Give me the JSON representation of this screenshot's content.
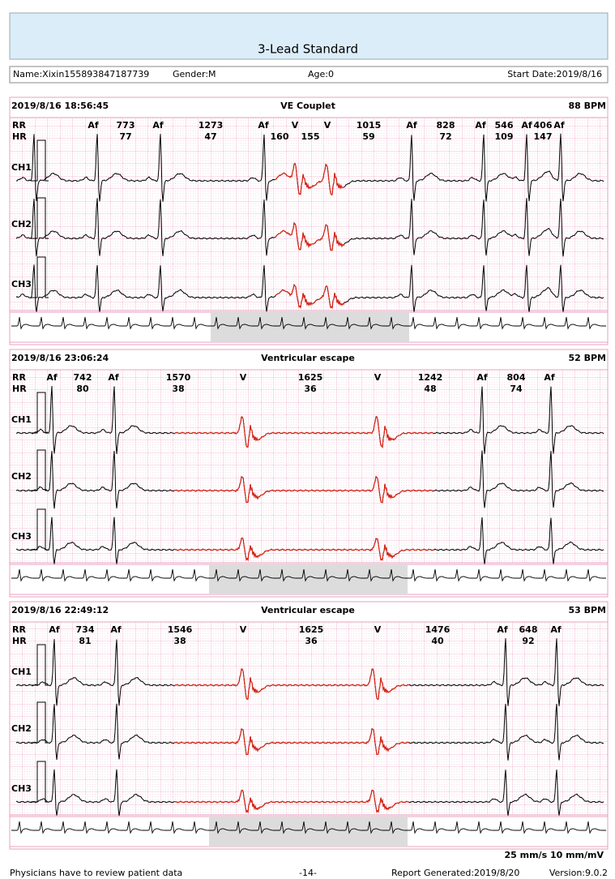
{
  "header": {
    "title": "3-Lead Standard"
  },
  "patient": {
    "name": "Name:Xixin155893847187739",
    "gender": "Gender:M",
    "age": "Age:0",
    "start_date": "Start Date:2019/8/16"
  },
  "strips": [
    {
      "time": "2019/8/16 18:56:45",
      "title": "VE Couplet",
      "bpm": "88 BPM",
      "rr_label": "RR",
      "hr_label": "HR",
      "channels": [
        "CH1",
        "CH2",
        "CH3"
      ],
      "rr": [
        "Af",
        "773",
        "Af",
        "1273",
        "Af",
        "V",
        "V",
        "1015",
        "Af",
        "828",
        "Af",
        "546",
        "Af",
        "406",
        "Af"
      ],
      "hr": [
        "77",
        "47",
        "160",
        "155",
        "59",
        "72",
        "109",
        "147"
      ]
    },
    {
      "time": "2019/8/16 23:06:24",
      "title": "Ventricular escape",
      "bpm": "52 BPM",
      "rr_label": "RR",
      "hr_label": "HR",
      "channels": [
        "CH1",
        "CH2",
        "CH3"
      ],
      "rr": [
        "Af",
        "742",
        "Af",
        "1570",
        "V",
        "1625",
        "V",
        "1242",
        "Af",
        "804",
        "Af"
      ],
      "hr": [
        "80",
        "38",
        "36",
        "48",
        "74"
      ]
    },
    {
      "time": "2019/8/16 22:49:12",
      "title": "Ventricular escape",
      "bpm": "53 BPM",
      "rr_label": "RR",
      "hr_label": "HR",
      "channels": [
        "CH1",
        "CH2",
        "CH3"
      ],
      "rr": [
        "Af",
        "734",
        "Af",
        "1546",
        "V",
        "1625",
        "V",
        "1476",
        "Af",
        "648",
        "Af"
      ],
      "hr": [
        "81",
        "38",
        "36",
        "40",
        "92"
      ]
    }
  ],
  "footer": {
    "scale": "25 mm/s 10 mm/mV",
    "notice": "Physicians have to review patient data",
    "page": "-14-",
    "generated": "Report Generated:2019/8/20",
    "version": "Version:9.0.2"
  }
}
